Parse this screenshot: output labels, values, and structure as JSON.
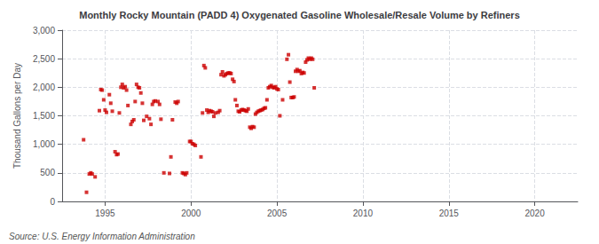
{
  "chart_data": {
    "type": "scatter",
    "title": "Monthly Rocky Mountain (PADD 4) Oxygenated Gasoline Wholesale/Resale Volume by Refiners",
    "ylabel": "Thousand Gallons per Day",
    "annotations": [
      "Source: U.S. Energy Information Administration"
    ],
    "color": "#cc0000",
    "marker": "square",
    "grid": true,
    "xlim": [
      1992.5,
      2022.5
    ],
    "xticks": [
      1995,
      2000,
      2005,
      2010,
      2015,
      2020
    ],
    "ylim": [
      0,
      3000
    ],
    "yticks": [
      0,
      500,
      {
        "value": 1000,
        "label": "1,000"
      },
      {
        "value": 1500,
        "label": "1,500"
      },
      {
        "value": 2000,
        "label": "2,000"
      },
      {
        "value": 2500,
        "label": "2,500"
      },
      {
        "value": 3000,
        "label": "3,000"
      }
    ],
    "x": [
      1993.75,
      1993.92,
      1994.08,
      1994.17,
      1994.25,
      1994.42,
      1994.67,
      1994.75,
      1994.83,
      1994.92,
      1995.0,
      1995.08,
      1995.25,
      1995.33,
      1995.42,
      1995.58,
      1995.67,
      1995.75,
      1995.83,
      1995.92,
      1996.0,
      1996.08,
      1996.17,
      1996.25,
      1996.33,
      1996.5,
      1996.58,
      1996.67,
      1996.75,
      1996.83,
      1996.92,
      1997.0,
      1997.08,
      1997.17,
      1997.25,
      1997.42,
      1997.58,
      1997.67,
      1997.75,
      1997.83,
      1997.92,
      1998.08,
      1998.17,
      1998.25,
      1998.42,
      1998.75,
      1998.83,
      1998.92,
      1999.08,
      1999.17,
      1999.25,
      1999.5,
      1999.58,
      1999.67,
      1999.75,
      1999.92,
      2000.0,
      2000.08,
      2000.17,
      2000.25,
      2000.58,
      2000.67,
      2000.75,
      2000.83,
      2000.92,
      2001.0,
      2001.08,
      2001.17,
      2001.25,
      2001.33,
      2001.42,
      2001.58,
      2001.67,
      2001.75,
      2001.83,
      2001.92,
      2002.0,
      2002.08,
      2002.17,
      2002.25,
      2002.33,
      2002.42,
      2002.5,
      2002.58,
      2002.67,
      2002.75,
      2002.83,
      2002.92,
      2003.0,
      2003.08,
      2003.17,
      2003.25,
      2003.33,
      2003.42,
      2003.5,
      2003.58,
      2003.67,
      2003.75,
      2003.83,
      2003.92,
      2004.0,
      2004.08,
      2004.17,
      2004.25,
      2004.33,
      2004.42,
      2004.5,
      2004.58,
      2004.67,
      2004.75,
      2004.83,
      2004.92,
      2005.0,
      2005.08,
      2005.17,
      2005.33,
      2005.58,
      2005.67,
      2005.75,
      2005.83,
      2005.92,
      2006.0,
      2006.08,
      2006.17,
      2006.25,
      2006.33,
      2006.42,
      2006.5,
      2006.58,
      2006.67,
      2006.75,
      2006.83,
      2006.92,
      2007.0,
      2007.08,
      2007.17
    ],
    "values": [
      1080,
      160,
      480,
      500,
      480,
      430,
      1590,
      1960,
      1950,
      1780,
      1600,
      1560,
      1870,
      1720,
      1580,
      870,
      820,
      830,
      1550,
      2000,
      2050,
      1990,
      2010,
      1950,
      1680,
      1350,
      1400,
      1430,
      1750,
      2050,
      2000,
      1990,
      1900,
      1720,
      1420,
      1490,
      1450,
      1350,
      1700,
      1750,
      1760,
      1750,
      1700,
      1440,
      500,
      490,
      780,
      1430,
      1740,
      1720,
      1750,
      500,
      490,
      470,
      500,
      1050,
      1050,
      1010,
      1000,
      980,
      780,
      1550,
      2380,
      2340,
      1600,
      1560,
      1590,
      1580,
      1570,
      1490,
      1550,
      1560,
      1590,
      2220,
      2270,
      2200,
      2220,
      2240,
      2250,
      2250,
      2240,
      2140,
      2100,
      1780,
      1680,
      1580,
      1570,
      1600,
      1610,
      1600,
      1590,
      1580,
      1620,
      1300,
      1280,
      1310,
      1300,
      1530,
      1560,
      1580,
      1590,
      1600,
      1610,
      1630,
      1640,
      1780,
      1990,
      2010,
      2030,
      2000,
      1990,
      2010,
      1970,
      1960,
      1500,
      1780,
      2490,
      2570,
      2090,
      1820,
      1820,
      1830,
      2280,
      2310,
      2280,
      2290,
      2240,
      2260,
      2250,
      2440,
      2480,
      2510,
      2490,
      2510,
      2490,
      1990
    ]
  }
}
